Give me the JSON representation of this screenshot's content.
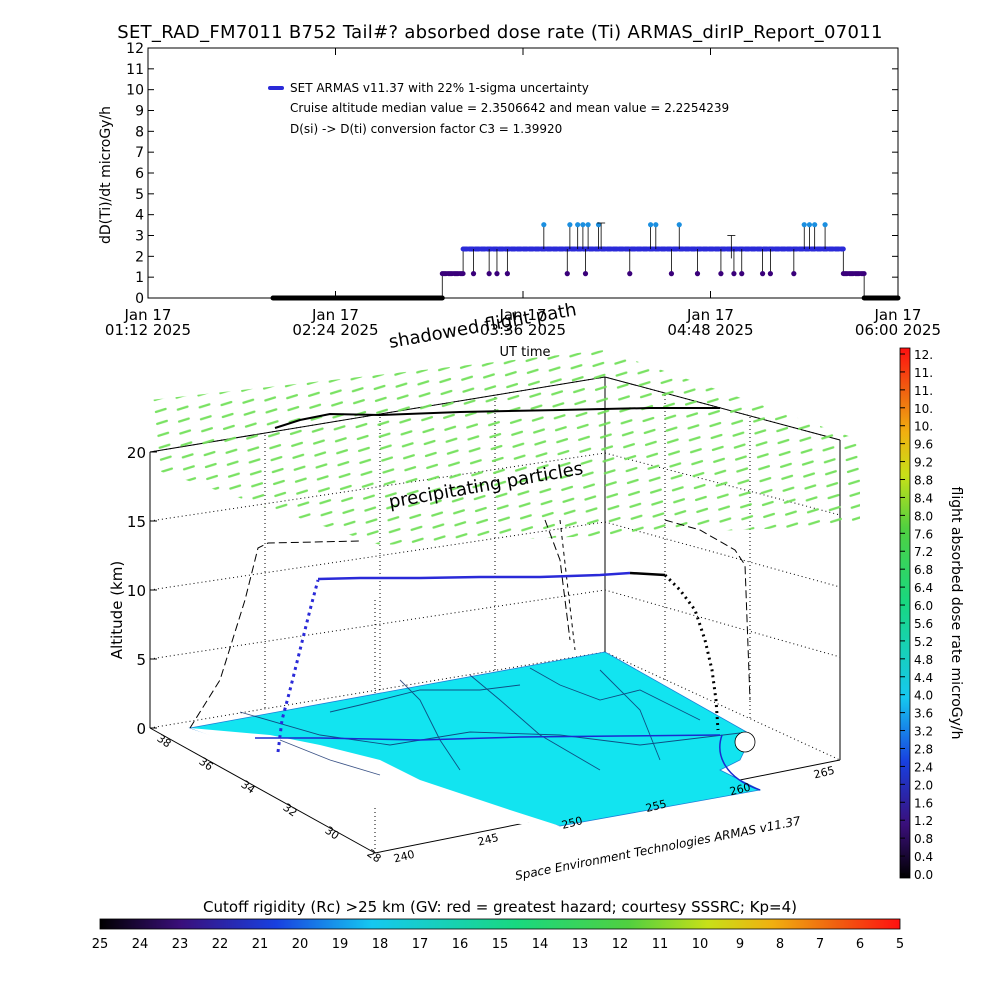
{
  "title": "SET_RAD_FM7011  B752 Tail#? absorbed dose rate (Ti) ARMAS_dirIP_Report_07011",
  "colors": {
    "series_main": "#2a2ad8",
    "series_dark": "#3a007a",
    "series_high": "#1b8fe0",
    "ground": "#000000",
    "map_ocean": "#12e4f0",
    "map_land": "#ffffff",
    "flight_3d_cruise": "#2a2ad8",
    "flight_3d_other": "#000000",
    "particles": "#6fe060"
  },
  "chart_data": [
    {
      "type": "scatter",
      "title": "",
      "ylabel": "dD(Ti)/dt microGy/h",
      "xlabel": "UT time",
      "ylim": [
        0,
        12
      ],
      "yticks": [
        "0",
        "1",
        "2",
        "3",
        "4",
        "5",
        "6",
        "7",
        "8",
        "9",
        "10",
        "11",
        "12"
      ],
      "xticks": [
        {
          "date": "Jan 17",
          "time": "01:12 2025"
        },
        {
          "date": "Jan 17",
          "time": "02:24 2025"
        },
        {
          "date": "Jan 17",
          "time": "03:36 2025"
        },
        {
          "date": "Jan 17",
          "time": "04:48 2025"
        },
        {
          "date": "Jan 17",
          "time": "06:00 2025"
        }
      ],
      "xlim": [
        "01:12",
        "06:00"
      ],
      "legend": [
        "SET ARMAS v11.37 with 22% 1-sigma uncertainty",
        "Cruise altitude median value = 2.3506642 and mean value = 2.2254239",
        "D(si) -> D(ti) conversion factor C3 = 1.39920"
      ],
      "legend_position": "top-left",
      "segments": [
        {
          "name": "",
          "start": "02:00",
          "end": "03:05",
          "value": 0.0
        },
        {
          "name": "",
          "start": "03:05",
          "end": "03:13",
          "value": 1.17
        },
        {
          "name": "",
          "start": "03:13",
          "end": "05:39",
          "value": 2.35
        },
        {
          "name": "",
          "start": "05:39",
          "end": "05:47",
          "value": 1.17
        },
        {
          "name": "",
          "start": "05:47",
          "end": "06:00",
          "value": 0.0
        }
      ],
      "high_points": [
        {
          "t": "03:44",
          "value": 3.52
        },
        {
          "t": "03:54",
          "value": 3.52
        },
        {
          "t": "03:57",
          "value": 3.52
        },
        {
          "t": "03:59",
          "value": 3.52
        },
        {
          "t": "04:01",
          "value": 3.52
        },
        {
          "t": "04:05",
          "value": 3.52
        },
        {
          "t": "04:25",
          "value": 3.52
        },
        {
          "t": "04:27",
          "value": 3.52
        },
        {
          "t": "04:36",
          "value": 3.52
        },
        {
          "t": "05:24",
          "value": 3.52
        },
        {
          "t": "05:26",
          "value": 3.52
        },
        {
          "t": "05:28",
          "value": 3.52
        },
        {
          "t": "05:32",
          "value": 3.52
        }
      ],
      "low_points": [
        {
          "t": "03:17",
          "value": 1.17
        },
        {
          "t": "03:23",
          "value": 1.17
        },
        {
          "t": "03:26",
          "value": 1.17
        },
        {
          "t": "03:30",
          "value": 1.17
        },
        {
          "t": "03:53",
          "value": 1.17
        },
        {
          "t": "04:00",
          "value": 1.17
        },
        {
          "t": "04:17",
          "value": 1.17
        },
        {
          "t": "04:33",
          "value": 1.17
        },
        {
          "t": "04:43",
          "value": 1.17
        },
        {
          "t": "04:52",
          "value": 1.17
        },
        {
          "t": "04:57",
          "value": 1.17
        },
        {
          "t": "05:00",
          "value": 1.17
        },
        {
          "t": "05:08",
          "value": 1.17
        },
        {
          "t": "05:11",
          "value": 1.17
        },
        {
          "t": "05:20",
          "value": 1.17
        }
      ]
    },
    {
      "type": "scatter",
      "title": "",
      "annotations": [
        "shadowed flight path",
        "precipitating particles"
      ],
      "zlabel": "Altitude (km)",
      "zticks": [
        "0",
        "5",
        "10",
        "15",
        "20"
      ],
      "lat_ticks": [
        "38",
        "36",
        "34",
        "32",
        "30",
        "28"
      ],
      "lon_ticks": [
        "240",
        "245",
        "250",
        "255",
        "260",
        "265"
      ],
      "credit": "Space Environment Technologies ARMAS v11.37",
      "flight_profile": [
        {
          "t": "02:00",
          "altitude_km": 0.0
        },
        {
          "t": "02:24",
          "altitude_km": 5.0
        },
        {
          "t": "02:45",
          "altitude_km": 11.3
        },
        {
          "t": "05:35",
          "altitude_km": 11.5
        },
        {
          "t": "05:50",
          "altitude_km": 5.0
        },
        {
          "t": "06:00",
          "altitude_km": 0.0
        }
      ]
    },
    {
      "type": "heatmap",
      "title": "flight absorbed dose rate microGy/h",
      "orientation": "vertical",
      "ticks": [
        "0.0",
        "0.4",
        "0.8",
        "1.2",
        "1.6",
        "2.0",
        "2.4",
        "2.8",
        "3.2",
        "3.6",
        "4.0",
        "4.4",
        "4.8",
        "5.2",
        "5.6",
        "6.0",
        "6.4",
        "6.8",
        "7.2",
        "7.6",
        "8.0",
        "8.4",
        "8.8",
        "9.2",
        "9.6",
        "10.",
        "10.",
        "11.",
        "11.",
        "12."
      ],
      "range": [
        0,
        12
      ]
    },
    {
      "type": "heatmap",
      "title": "Cutoff rigidity (Rc) >25 km (GV: red = greatest hazard; courtesy SSSRC; Kp=4)",
      "orientation": "horizontal",
      "ticks": [
        "25",
        "24",
        "23",
        "22",
        "21",
        "20",
        "19",
        "18",
        "17",
        "16",
        "15",
        "14",
        "13",
        "12",
        "11",
        "10",
        "9",
        "8",
        "7",
        "6",
        "5"
      ],
      "range": [
        25,
        5
      ]
    }
  ]
}
